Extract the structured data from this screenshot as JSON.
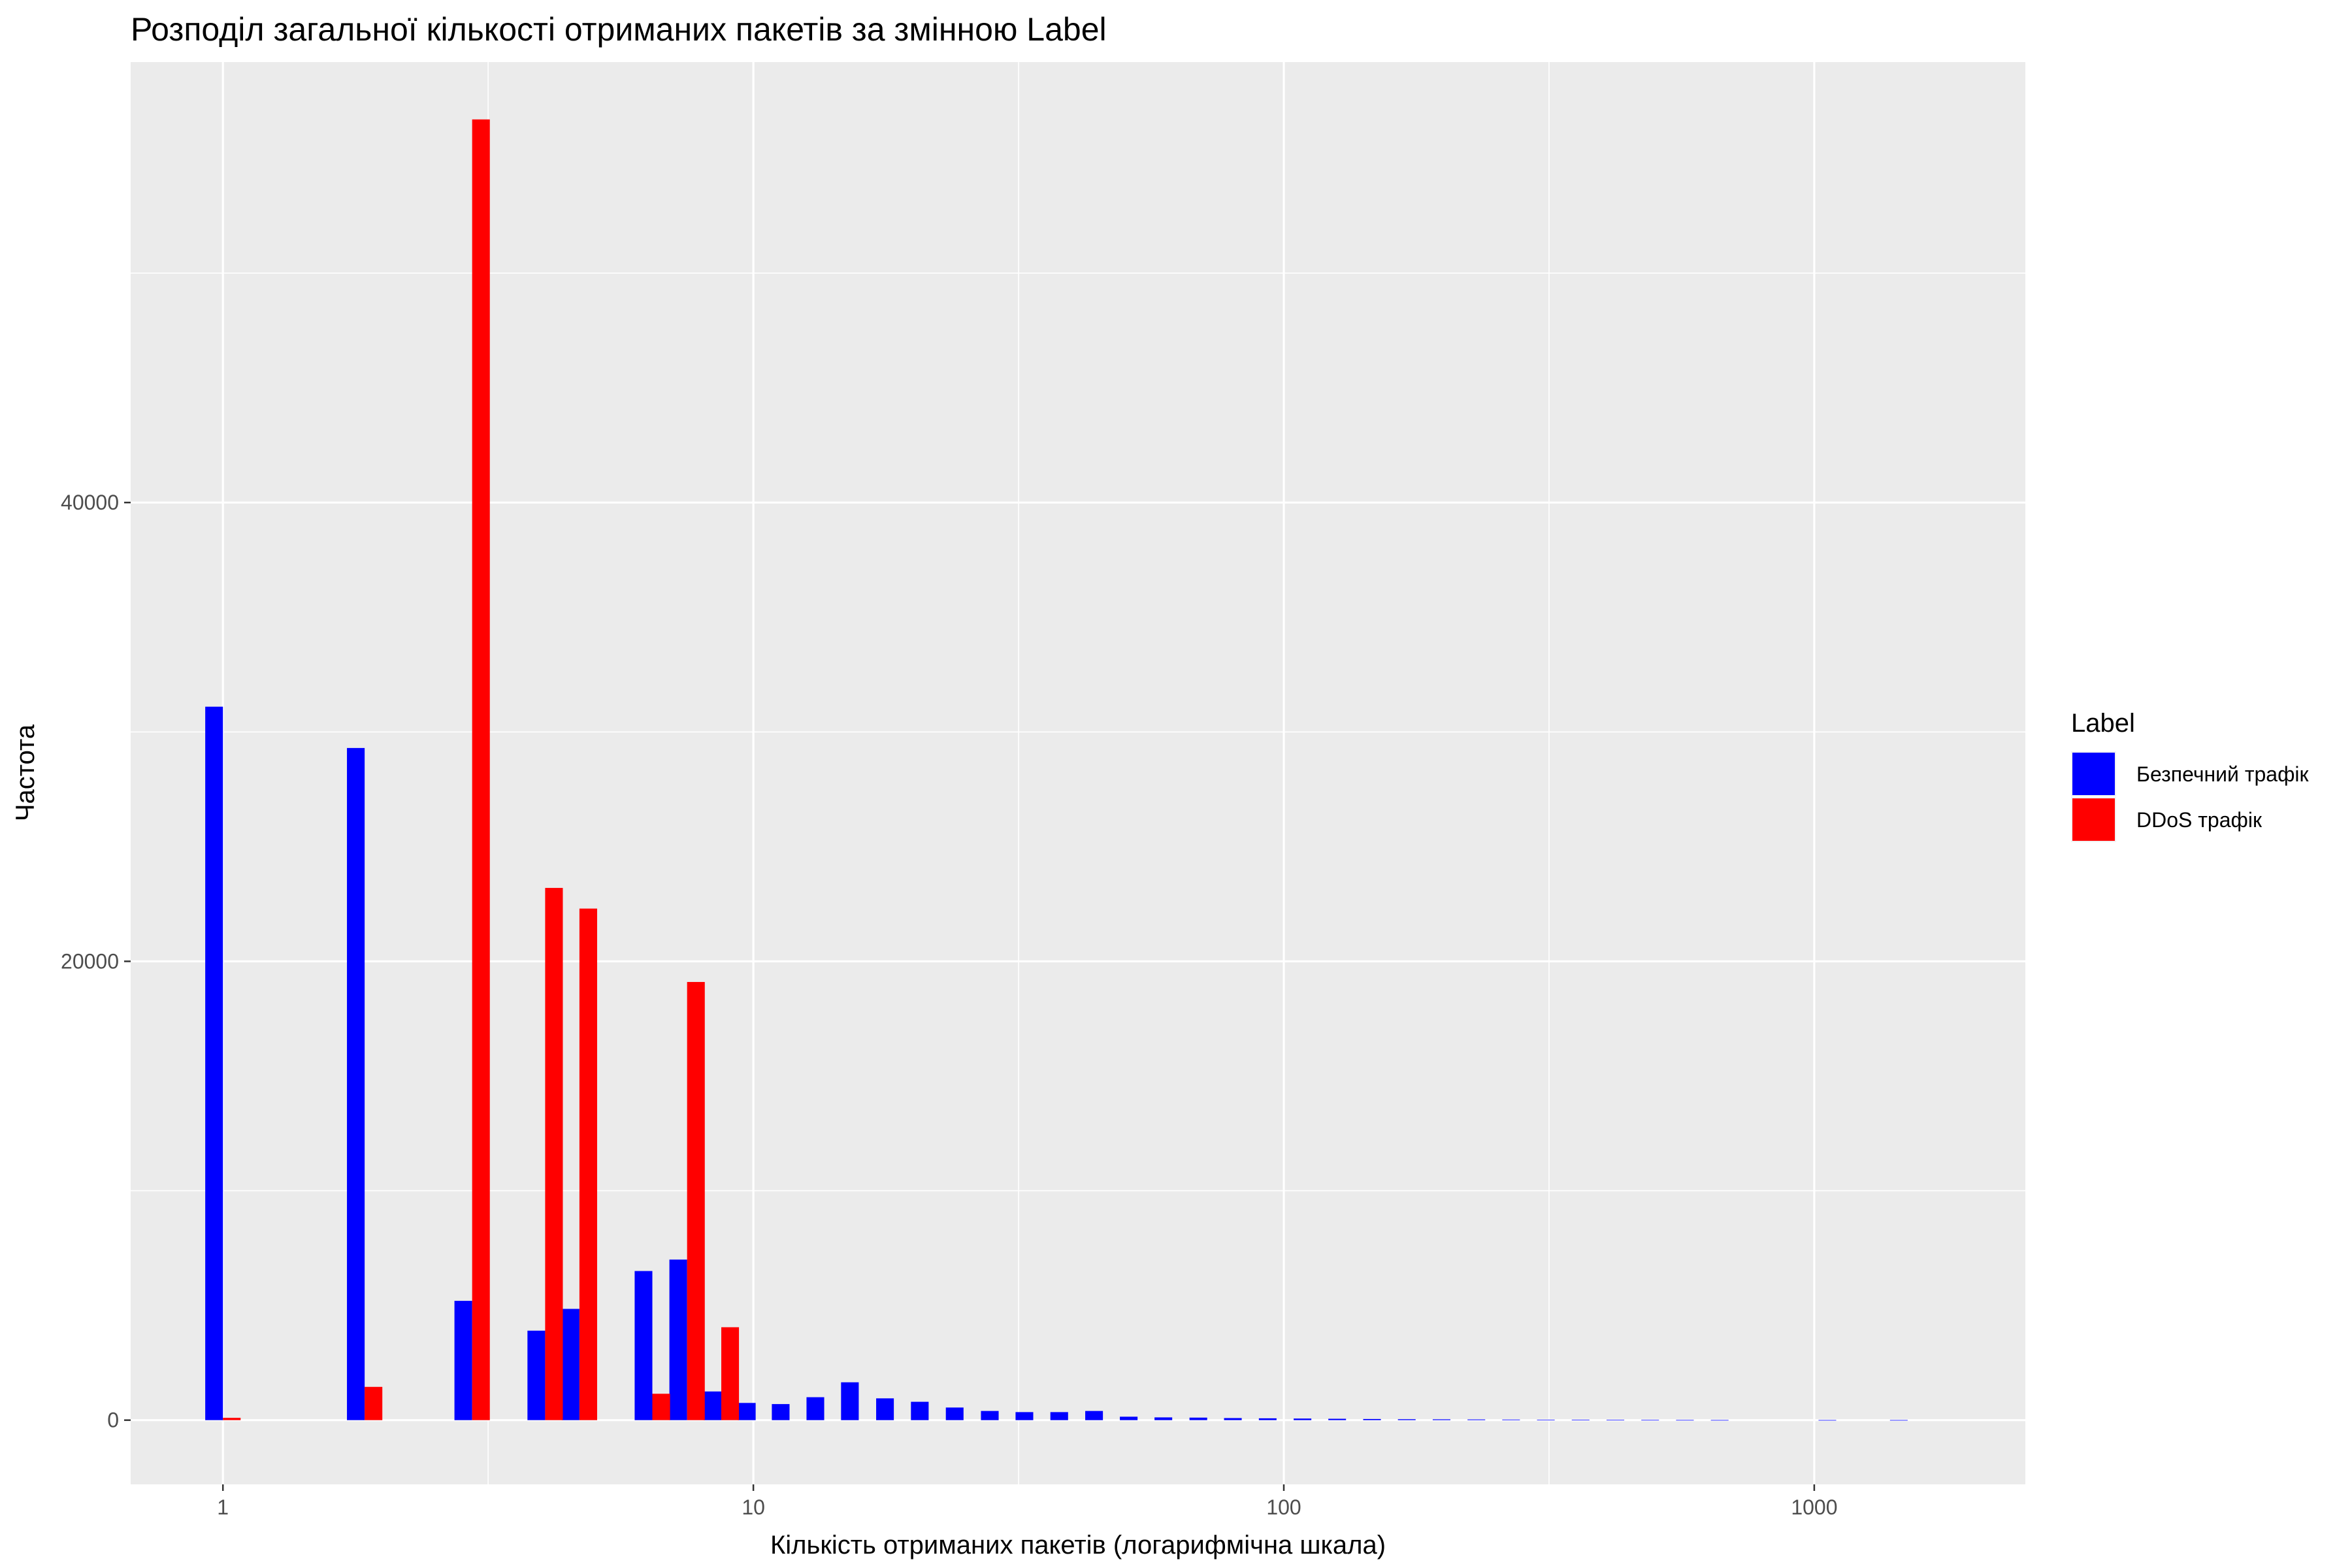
{
  "chart_data": {
    "type": "bar",
    "title": "Розподіл загальної кількості отриманих пакетів за змінною Label",
    "xlabel": "Кількість отриманих пакетів (логарифмічна шкала)",
    "ylabel": "Частота",
    "x_scale": "log10",
    "xlim": [
      0.67,
      2500
    ],
    "ylim": [
      -2800,
      59200
    ],
    "x_ticks": [
      {
        "value": 1,
        "label": "1"
      },
      {
        "value": 10,
        "label": "10"
      },
      {
        "value": 100,
        "label": "100"
      },
      {
        "value": 1000,
        "label": "1000"
      }
    ],
    "y_ticks": [
      {
        "value": 0,
        "label": "0"
      },
      {
        "value": 20000,
        "label": "20000"
      },
      {
        "value": 40000,
        "label": "40000"
      }
    ],
    "bin_log_width": 0.0667,
    "grid": true,
    "legend": {
      "title": "Label",
      "position": "right"
    },
    "series": [
      {
        "name": "Безпечний трафік",
        "color": "#0000ff",
        "points": [
          {
            "x": 1.0,
            "y": 31100
          },
          {
            "x": 1.85,
            "y": 29300
          },
          {
            "x": 2.95,
            "y": 5200
          },
          {
            "x": 4.05,
            "y": 3900
          },
          {
            "x": 4.7,
            "y": 4850
          },
          {
            "x": 6.45,
            "y": 6500
          },
          {
            "x": 7.5,
            "y": 7000
          },
          {
            "x": 8.7,
            "y": 1250
          },
          {
            "x": 10.1,
            "y": 750
          },
          {
            "x": 11.7,
            "y": 700
          },
          {
            "x": 13.6,
            "y": 1000
          },
          {
            "x": 15.8,
            "y": 1650
          },
          {
            "x": 18.4,
            "y": 950
          },
          {
            "x": 21.4,
            "y": 800
          },
          {
            "x": 24.9,
            "y": 550
          },
          {
            "x": 29.0,
            "y": 400
          },
          {
            "x": 33.7,
            "y": 350
          },
          {
            "x": 39.2,
            "y": 350
          },
          {
            "x": 45.6,
            "y": 400
          },
          {
            "x": 53.0,
            "y": 150
          },
          {
            "x": 61.6,
            "y": 120
          },
          {
            "x": 71.7,
            "y": 110
          },
          {
            "x": 83.3,
            "y": 90
          },
          {
            "x": 96.9,
            "y": 80
          },
          {
            "x": 112.7,
            "y": 70
          },
          {
            "x": 131.0,
            "y": 60
          },
          {
            "x": 152.4,
            "y": 50
          },
          {
            "x": 177.2,
            "y": 40
          },
          {
            "x": 206.1,
            "y": 35
          },
          {
            "x": 239.7,
            "y": 30
          },
          {
            "x": 278.7,
            "y": 25
          },
          {
            "x": 324.1,
            "y": 20
          },
          {
            "x": 376.9,
            "y": 15
          },
          {
            "x": 438.3,
            "y": 12
          },
          {
            "x": 509.7,
            "y": 10
          },
          {
            "x": 592.7,
            "y": 8
          },
          {
            "x": 689.3,
            "y": 6
          },
          {
            "x": 1100,
            "y": 5
          },
          {
            "x": 1500,
            "y": 5
          }
        ]
      },
      {
        "name": "DDoS трафік",
        "color": "#ff0000",
        "points": [
          {
            "x": 1.0,
            "y": 100
          },
          {
            "x": 1.85,
            "y": 1450
          },
          {
            "x": 2.95,
            "y": 56700
          },
          {
            "x": 4.05,
            "y": 23200
          },
          {
            "x": 4.7,
            "y": 22300
          },
          {
            "x": 6.45,
            "y": 1150
          },
          {
            "x": 7.5,
            "y": 19100
          },
          {
            "x": 8.7,
            "y": 4050
          }
        ]
      }
    ]
  }
}
